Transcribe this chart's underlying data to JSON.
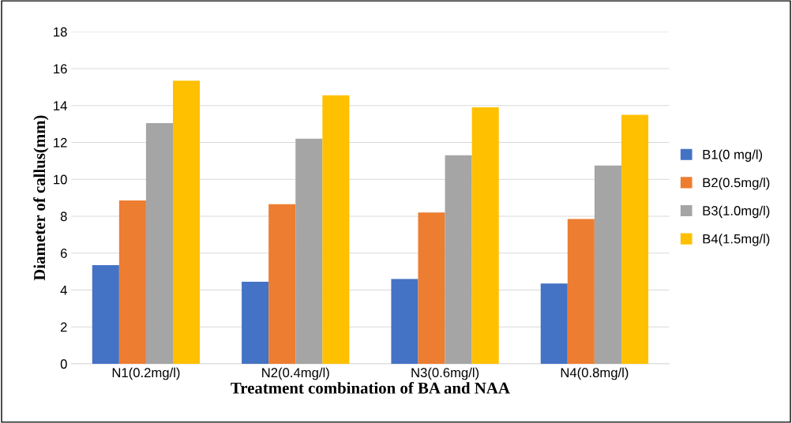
{
  "chart_data": {
    "type": "bar",
    "xlabel": "Treatment combination of BA and NAA",
    "ylabel": "Diameter of callus(mm)",
    "categories": [
      "N1(0.2mg/l)",
      "N2(0.4mg/l)",
      "N3(0.6mg/l)",
      "N4(0.8mg/l)"
    ],
    "series": [
      {
        "name": "B1(0 mg/l)",
        "color": "#4472c4",
        "values": [
          5.35,
          4.45,
          4.6,
          4.35
        ]
      },
      {
        "name": "B2(0.5mg/l)",
        "color": "#ed7d31",
        "values": [
          8.85,
          8.65,
          8.2,
          7.85
        ]
      },
      {
        "name": "B3(1.0mg/l)",
        "color": "#a5a5a5",
        "values": [
          13.05,
          12.2,
          11.3,
          10.75
        ]
      },
      {
        "name": "B4(1.5mg/l)",
        "color": "#ffc000",
        "values": [
          15.35,
          14.55,
          13.9,
          13.5
        ]
      }
    ],
    "ylim": [
      0,
      18
    ],
    "yticks": [
      0,
      2,
      4,
      6,
      8,
      10,
      12,
      14,
      16,
      18
    ],
    "grid": "y",
    "legend": "right"
  }
}
